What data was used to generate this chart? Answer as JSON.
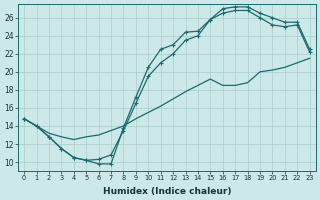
{
  "bg_color": "#cce8e8",
  "grid_color": "#aacccc",
  "line_color": "#1a6b6b",
  "xlabel": "Humidex (Indice chaleur)",
  "xlim": [
    -0.5,
    23.5
  ],
  "ylim": [
    9.0,
    27.5
  ],
  "yticks": [
    10,
    12,
    14,
    16,
    18,
    20,
    22,
    24,
    26
  ],
  "curve_zigzag_x": [
    0,
    1,
    2,
    3,
    4,
    5,
    6,
    7,
    8,
    9,
    10,
    11,
    12,
    13,
    14,
    15,
    16,
    17,
    18,
    19,
    20,
    21,
    22,
    23
  ],
  "curve_zigzag_y": [
    14.8,
    14.0,
    12.8,
    11.5,
    10.5,
    10.2,
    9.8,
    9.8,
    13.8,
    17.2,
    20.5,
    22.5,
    23.0,
    24.4,
    24.5,
    25.8,
    27.0,
    27.2,
    27.2,
    26.5,
    26.0,
    25.5,
    25.5,
    22.5
  ],
  "curve_upper_x": [
    0,
    1,
    2,
    3,
    4,
    5,
    6,
    7,
    8,
    9,
    10,
    11,
    12,
    13,
    14,
    15,
    16,
    17,
    18,
    19,
    20,
    21,
    22,
    23
  ],
  "curve_upper_y": [
    14.8,
    14.0,
    12.8,
    11.5,
    10.5,
    10.2,
    10.3,
    10.8,
    13.5,
    16.5,
    19.5,
    21.0,
    22.0,
    23.5,
    24.0,
    25.8,
    26.5,
    26.8,
    26.8,
    26.0,
    25.2,
    25.0,
    25.2,
    22.2
  ],
  "curve_diag_x": [
    0,
    1,
    2,
    3,
    4,
    5,
    6,
    7,
    8,
    9,
    10,
    11,
    12,
    13,
    14,
    15,
    16,
    17,
    18,
    19,
    20,
    21,
    22,
    23
  ],
  "curve_diag_y": [
    14.8,
    14.0,
    13.2,
    12.8,
    12.5,
    12.8,
    13.0,
    13.5,
    14.0,
    14.8,
    15.5,
    16.2,
    17.0,
    17.8,
    18.5,
    19.2,
    18.5,
    18.5,
    18.8,
    20.0,
    20.2,
    20.5,
    21.0,
    21.5
  ]
}
